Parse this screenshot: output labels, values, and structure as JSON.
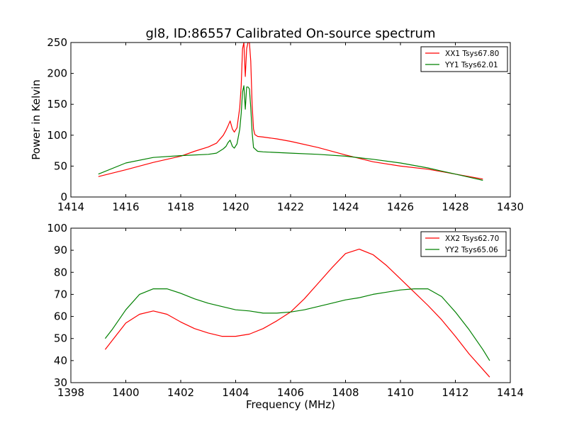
{
  "figure": {
    "title": "gl8, ID:86557 Calibrated On-source spectrum"
  },
  "chart_data": [
    {
      "type": "line",
      "title": "gl8, ID:86557 Calibrated On-source spectrum",
      "xlabel": "",
      "ylabel": "Power in Kelvin",
      "xlim": [
        1414,
        1430
      ],
      "ylim": [
        0,
        250
      ],
      "xticks": [
        1414,
        1416,
        1418,
        1420,
        1422,
        1424,
        1426,
        1428,
        1430
      ],
      "yticks": [
        0,
        50,
        100,
        150,
        200,
        250
      ],
      "legend": "top-right",
      "series": [
        {
          "name": "XX1 Tsys67.80",
          "color": "#ff0000",
          "x": [
            1415.0,
            1416.0,
            1417.0,
            1418.0,
            1418.5,
            1419.0,
            1419.3,
            1419.55,
            1419.65,
            1419.72,
            1419.8,
            1419.88,
            1419.95,
            1420.05,
            1420.15,
            1420.2,
            1420.25,
            1420.3,
            1420.35,
            1420.4,
            1420.45,
            1420.5,
            1420.55,
            1420.6,
            1420.65,
            1420.7,
            1420.8,
            1421.0,
            1421.5,
            1422.0,
            1423.0,
            1424.0,
            1425.0,
            1426.0,
            1427.0,
            1427.5,
            1428.0,
            1428.5,
            1429.0
          ],
          "y": [
            33,
            44,
            56,
            66,
            74,
            81,
            87,
            100,
            108,
            115,
            123,
            110,
            105,
            112,
            145,
            180,
            240,
            250,
            195,
            240,
            250,
            250,
            220,
            150,
            110,
            101,
            98,
            97,
            94,
            90,
            80,
            68,
            57,
            50,
            45,
            41,
            37,
            33,
            29
          ]
        },
        {
          "name": "YY1 Tsys62.01",
          "color": "#008000",
          "x": [
            1415.0,
            1416.0,
            1417.0,
            1418.0,
            1419.0,
            1419.3,
            1419.55,
            1419.65,
            1419.72,
            1419.8,
            1419.88,
            1419.95,
            1420.05,
            1420.15,
            1420.2,
            1420.25,
            1420.3,
            1420.35,
            1420.4,
            1420.45,
            1420.5,
            1420.55,
            1420.6,
            1420.65,
            1420.8,
            1421.0,
            1422.0,
            1423.0,
            1424.0,
            1425.0,
            1426.0,
            1427.0,
            1427.5,
            1428.0,
            1428.5,
            1429.0
          ],
          "y": [
            37,
            55,
            64,
            67,
            69,
            71,
            78,
            82,
            88,
            92,
            82,
            79,
            86,
            110,
            135,
            170,
            180,
            142,
            178,
            178,
            175,
            145,
            105,
            80,
            74,
            73,
            71,
            69,
            66,
            61,
            55,
            47,
            42,
            37,
            32,
            27
          ]
        }
      ]
    },
    {
      "type": "line",
      "title": "",
      "xlabel": "Frequency (MHz)",
      "ylabel": "",
      "xlim": [
        1398,
        1414
      ],
      "ylim": [
        30,
        100
      ],
      "xticks": [
        1398,
        1400,
        1402,
        1404,
        1406,
        1408,
        1410,
        1412,
        1414
      ],
      "yticks": [
        30,
        40,
        50,
        60,
        70,
        80,
        90,
        100
      ],
      "legend": "top-right",
      "series": [
        {
          "name": "XX2 Tsys62.70",
          "color": "#ff0000",
          "x": [
            1399.25,
            1399.5,
            1400.0,
            1400.5,
            1401.0,
            1401.5,
            1402.0,
            1402.5,
            1403.0,
            1403.5,
            1404.0,
            1404.5,
            1405.0,
            1405.5,
            1406.0,
            1406.5,
            1407.0,
            1407.5,
            1408.0,
            1408.5,
            1409.0,
            1409.5,
            1410.0,
            1410.5,
            1411.0,
            1411.5,
            1412.0,
            1412.5,
            1413.0,
            1413.25
          ],
          "y": [
            45,
            49,
            57,
            61,
            62.5,
            61,
            57.5,
            54.5,
            52.5,
            51,
            51,
            52,
            54.5,
            58,
            62,
            68,
            75,
            82,
            88.5,
            90.5,
            88,
            83,
            77,
            71,
            65,
            58.5,
            51,
            43,
            36,
            32.5
          ]
        },
        {
          "name": "YY2 Tsys65.06",
          "color": "#008000",
          "x": [
            1399.25,
            1399.5,
            1400.0,
            1400.5,
            1401.0,
            1401.5,
            1402.0,
            1402.5,
            1403.0,
            1403.5,
            1404.0,
            1404.5,
            1405.0,
            1405.5,
            1406.0,
            1406.5,
            1407.0,
            1407.5,
            1408.0,
            1408.5,
            1409.0,
            1409.5,
            1410.0,
            1410.5,
            1411.0,
            1411.5,
            1412.0,
            1412.5,
            1413.0,
            1413.25
          ],
          "y": [
            50,
            54,
            63,
            70,
            72.5,
            72.5,
            70.5,
            68,
            66,
            64.5,
            63,
            62.5,
            61.5,
            61.5,
            62,
            63,
            64.5,
            66,
            67.5,
            68.5,
            70,
            71,
            72,
            72.5,
            72.5,
            69,
            62,
            54,
            45,
            40
          ]
        }
      ]
    }
  ]
}
